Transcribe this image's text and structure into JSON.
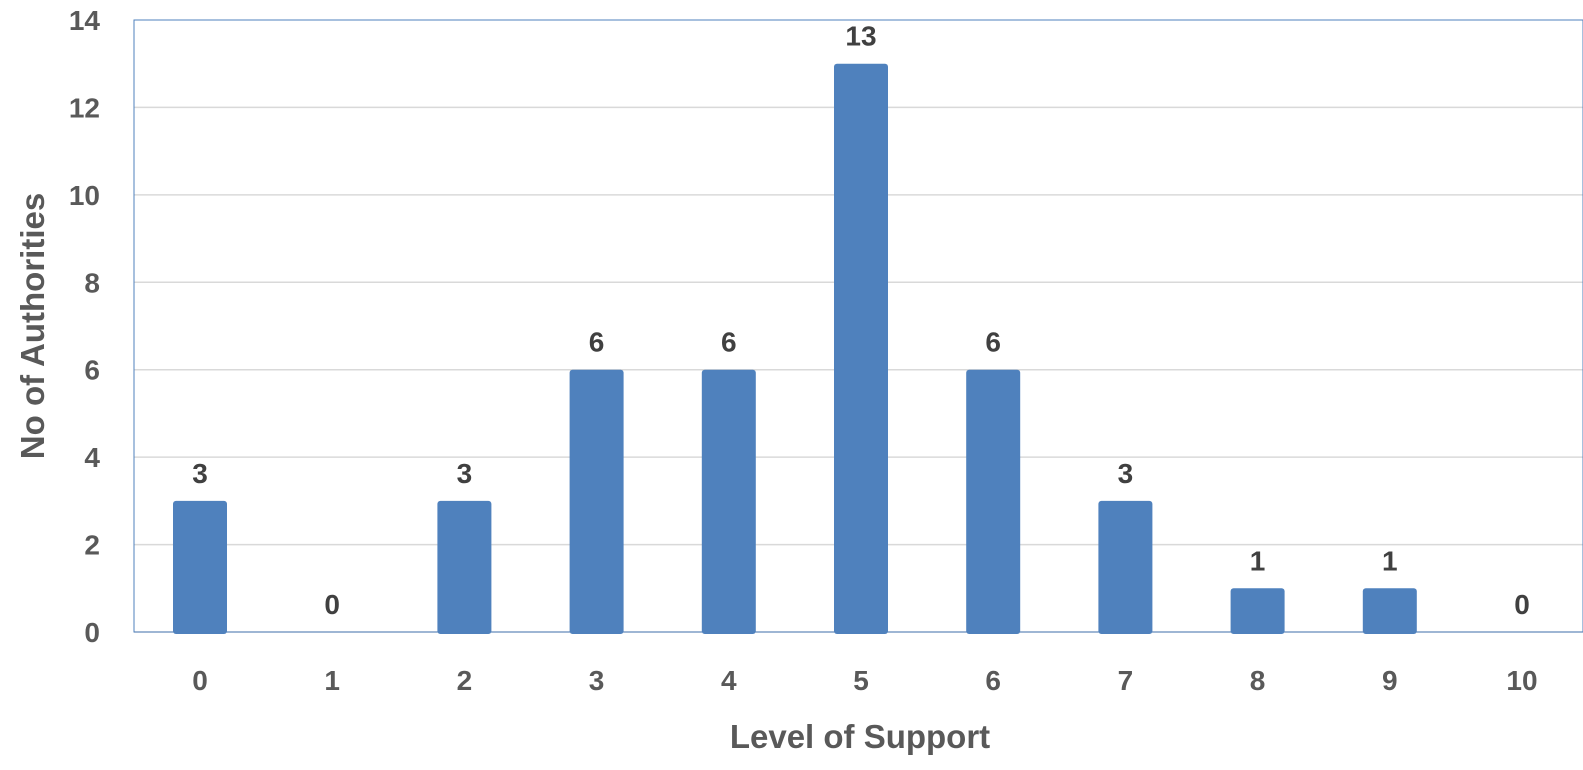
{
  "chart_data": {
    "type": "bar",
    "categories": [
      "0",
      "1",
      "2",
      "3",
      "4",
      "5",
      "6",
      "7",
      "8",
      "9",
      "10"
    ],
    "values": [
      3,
      0,
      3,
      6,
      6,
      13,
      6,
      3,
      1,
      1,
      0
    ],
    "data_labels": [
      "3",
      "0",
      "3",
      "6",
      "6",
      "13",
      "6",
      "3",
      "1",
      "1",
      "0"
    ],
    "xlabel": "Level of Support",
    "ylabel": "No of Authorities",
    "ylim": [
      0,
      14
    ],
    "yticks": [
      "0",
      "2",
      "4",
      "6",
      "8",
      "10",
      "12",
      "14"
    ],
    "grid": true,
    "legend": "none",
    "colors": {
      "bar": "#4f81bd",
      "grid": "#d9d9d9",
      "plot_border": "#4f81bd",
      "text": "#595959",
      "label_text": "#404040"
    }
  }
}
